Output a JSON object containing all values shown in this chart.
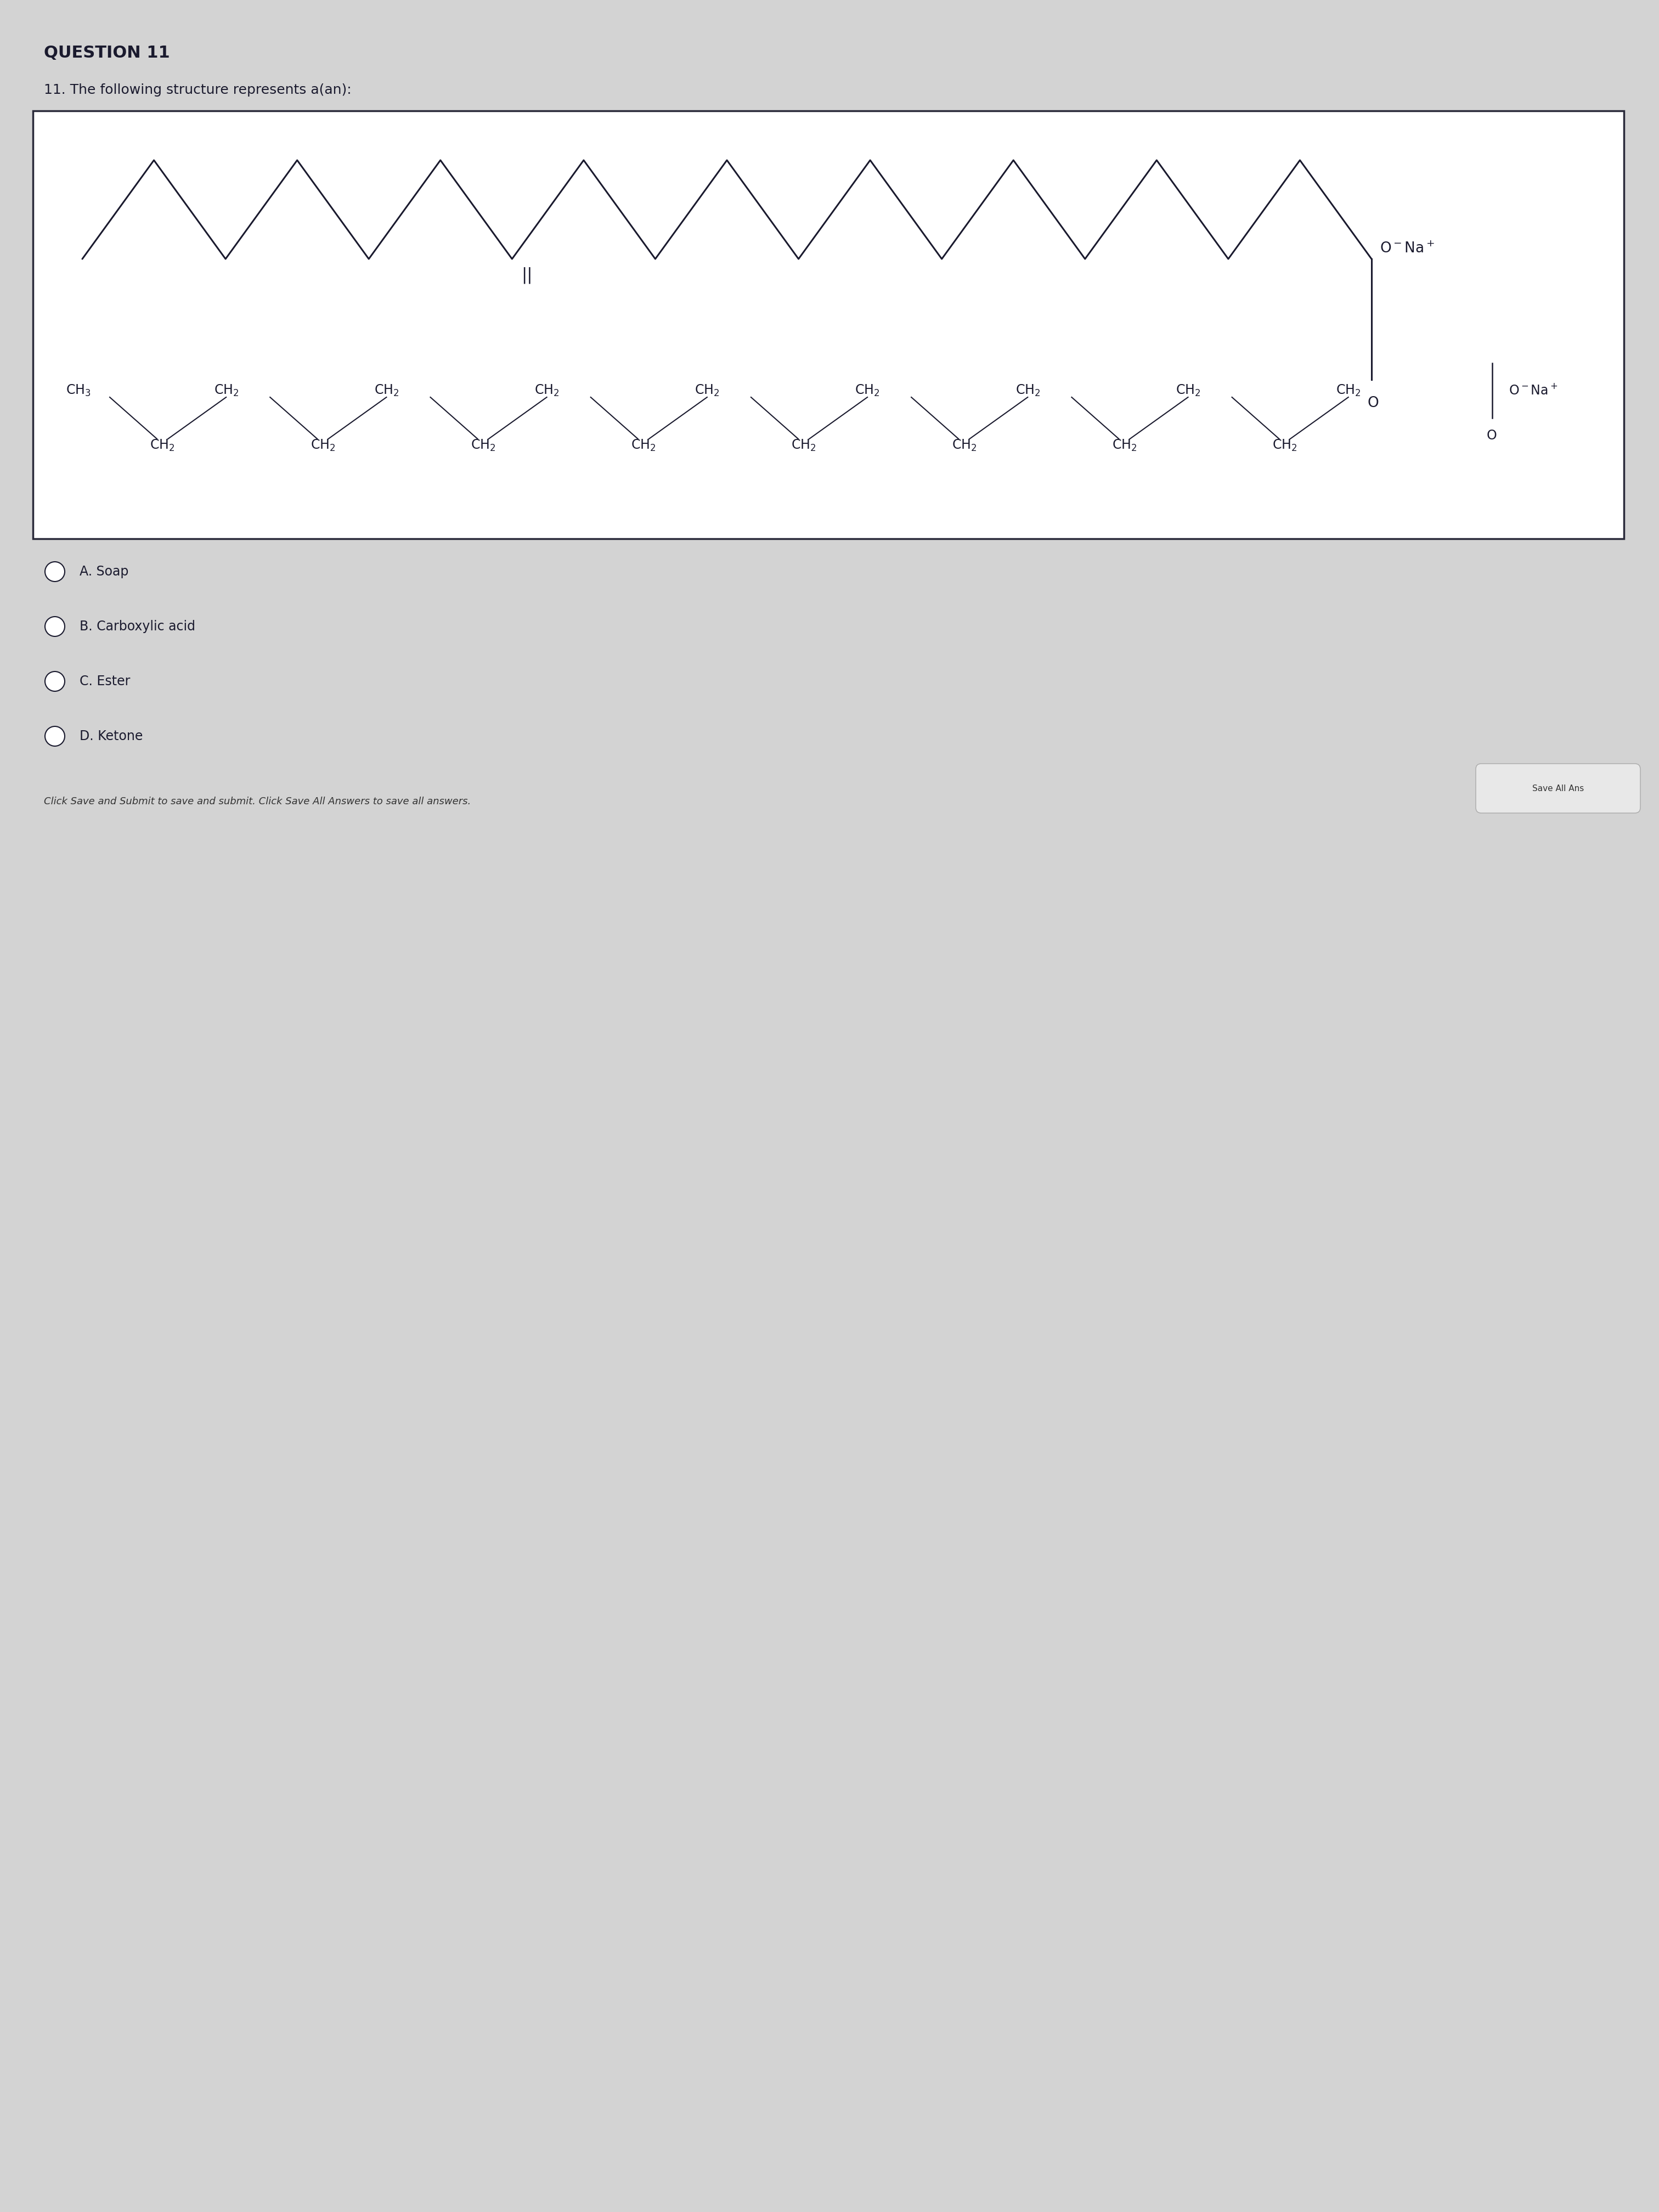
{
  "title": "QUESTION 11",
  "question": "11. The following structure represents a(an):",
  "options": [
    "A. Soap",
    "B. Carboxylic acid",
    "C. Ester",
    "D. Ketone"
  ],
  "footer": "Click Save and Submit to save and submit. Click Save All Answers to save all answers.",
  "bg_color": "#d3d3d3",
  "box_bg": "#f0f0f0",
  "text_color": "#1a1a2e",
  "font_size_title": 22,
  "font_size_question": 18,
  "font_size_options": 17,
  "font_size_chem": 15
}
